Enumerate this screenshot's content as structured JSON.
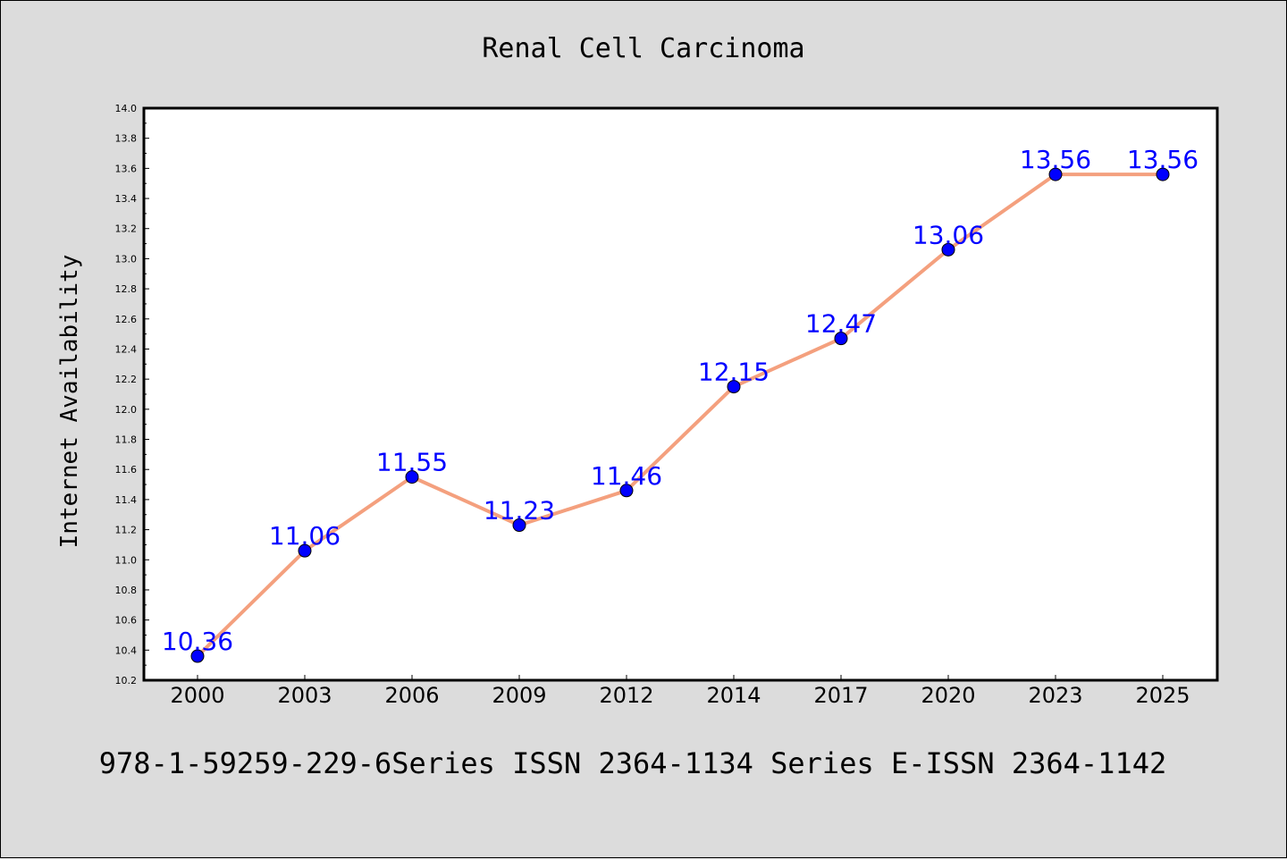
{
  "chart_data": {
    "type": "line",
    "title": "Renal Cell Carcinoma",
    "xlabel": "",
    "ylabel": "Internet Availability",
    "categories": [
      "2000",
      "2003",
      "2006",
      "2009",
      "2012",
      "2014",
      "2017",
      "2020",
      "2023",
      "2025"
    ],
    "series": [
      {
        "values": [
          10.36,
          11.06,
          11.55,
          11.23,
          11.46,
          12.15,
          12.47,
          13.06,
          13.56,
          13.56
        ],
        "data_labels": [
          "10.36",
          "11.06",
          "11.55",
          "11.23",
          "11.46",
          "12.15",
          "12.47",
          "13.06",
          "13.56",
          "13.56"
        ],
        "line_color": "#f4a07e",
        "marker_color": "#0000ff"
      }
    ],
    "ylim": [
      10.2,
      14.0
    ],
    "yticks": [
      "10.2",
      "10.4",
      "10.6",
      "10.8",
      "11.0",
      "11.2",
      "11.4",
      "11.6",
      "11.8",
      "12.0",
      "12.2",
      "12.4",
      "12.6",
      "12.8",
      "13.0",
      "13.2",
      "13.4",
      "13.6",
      "13.8",
      "14.0"
    ],
    "grid": false,
    "legend": "none",
    "colors": {
      "background": "#dcdcdc",
      "plot_background": "#ffffff",
      "label_color": "#0000ff"
    }
  },
  "footer": {
    "text": "978-1-59259-229-6Series ISSN 2364-1134 Series E-ISSN 2364-1142"
  }
}
